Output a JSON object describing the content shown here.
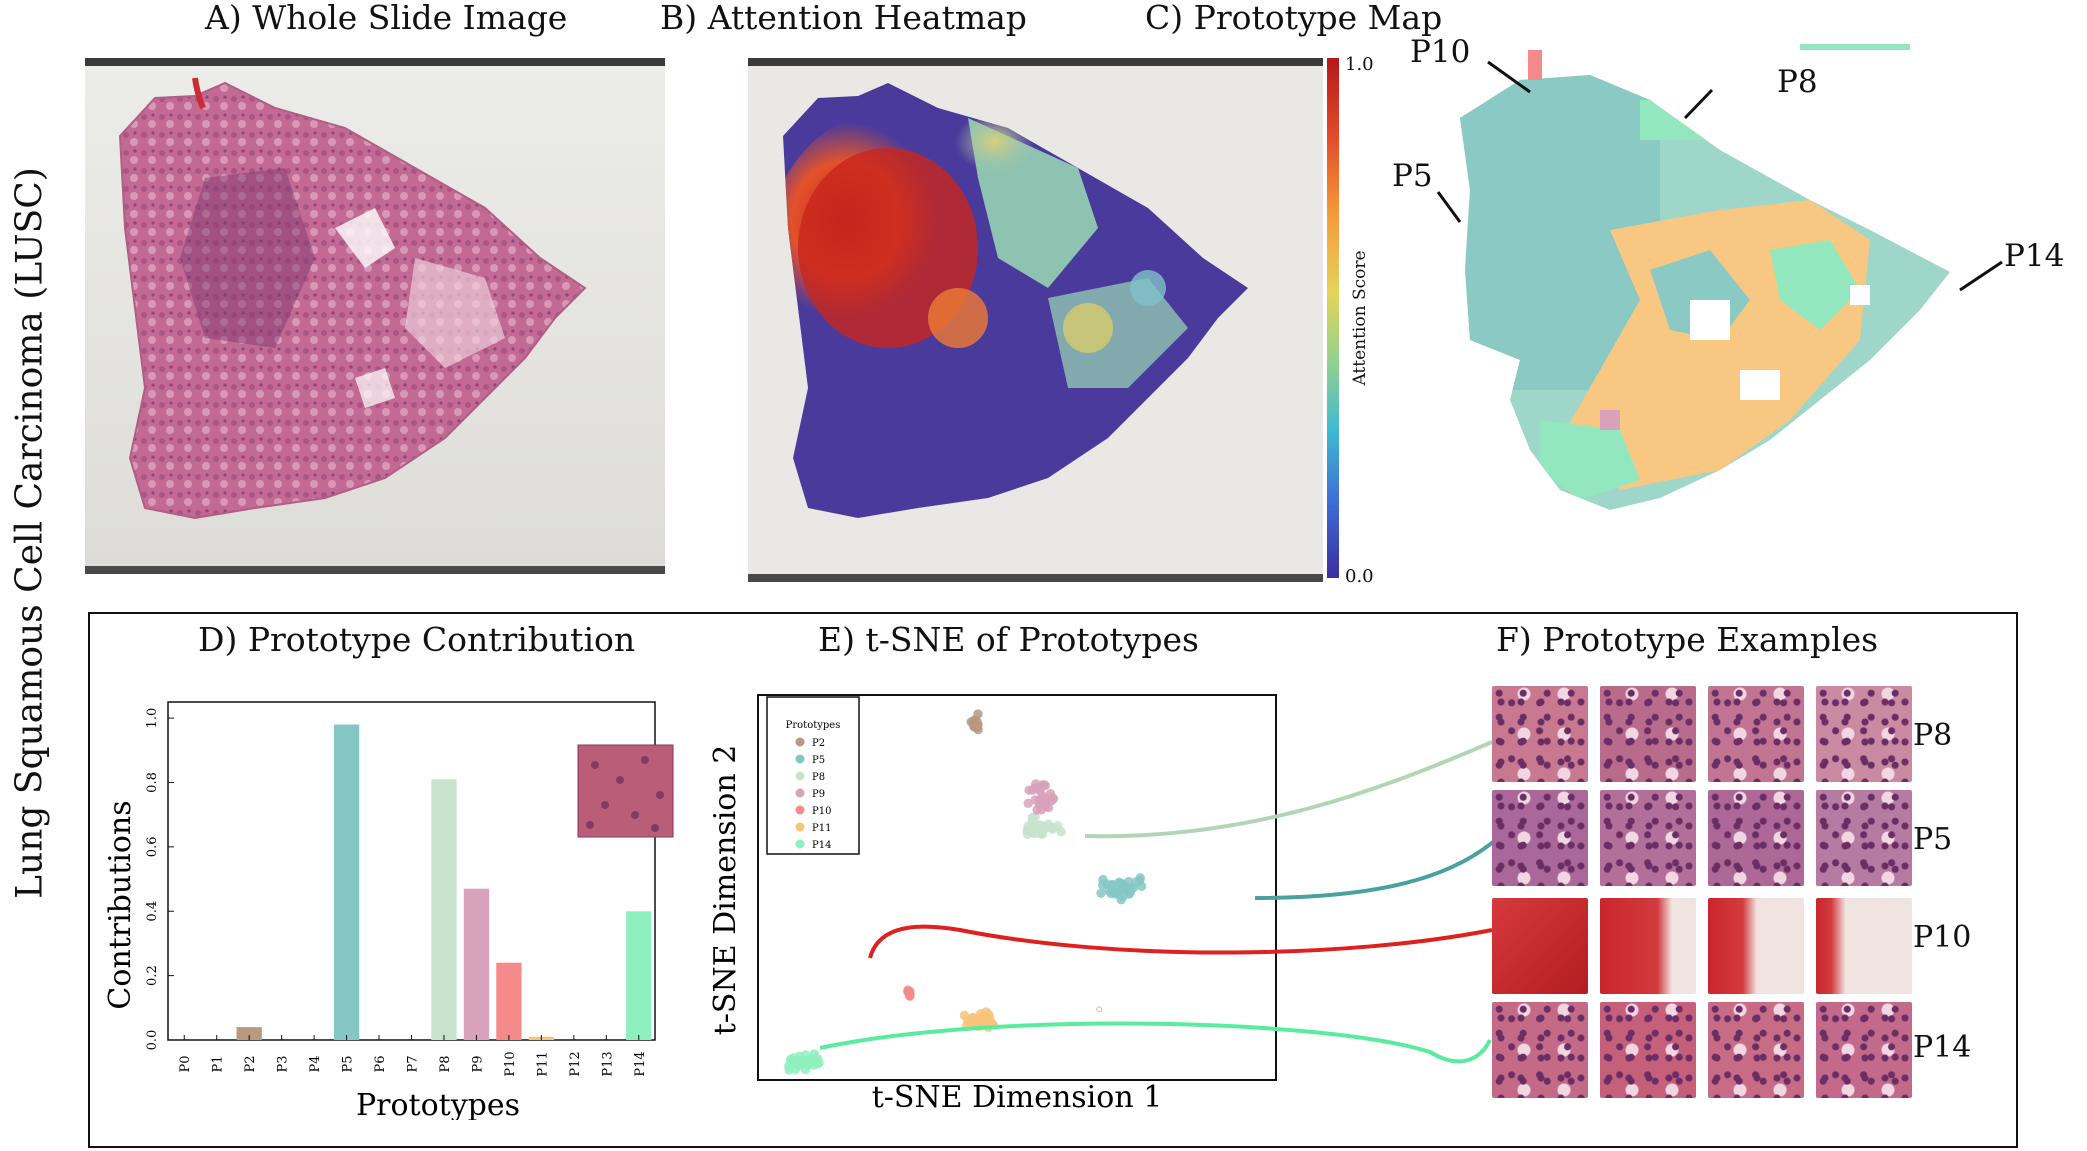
{
  "side_label": "Lung Squamous Cell Carcinoma (LUSC)",
  "panels": {
    "a": {
      "title": "A) Whole Slide Image"
    },
    "b": {
      "title": "B) Attention Heatmap",
      "colorbar_label": "Attention Score",
      "colorbar_max": "1.0",
      "colorbar_min": "0.0"
    },
    "c": {
      "title": "C) Prototype Map",
      "callouts": [
        "P10",
        "P8",
        "P5",
        "P14"
      ]
    },
    "d": {
      "title": "D) Prototype Contribution"
    },
    "e": {
      "title": "E) t-SNE of Prototypes",
      "legend_title": "Prototypes"
    },
    "f": {
      "title": "F) Prototype Examples",
      "row_labels": [
        "P8",
        "P5",
        "P10",
        "P14"
      ]
    }
  },
  "colors": {
    "P2": "#b89a80",
    "P5": "#84c7c4",
    "P8": "#c7e3cc",
    "P9": "#d9a2bb",
    "P10": "#f58a8a",
    "P11": "#f7c47a",
    "P14": "#8ef0be"
  },
  "chart_data": [
    {
      "type": "bar",
      "title": "D) Prototype Contribution",
      "xlabel": "Prototypes",
      "ylabel": "Contributions",
      "categories": [
        "P0",
        "P1",
        "P2",
        "P3",
        "P4",
        "P5",
        "P6",
        "P7",
        "P8",
        "P9",
        "P10",
        "P11",
        "P12",
        "P13",
        "P14"
      ],
      "values": [
        0,
        0,
        0.04,
        0,
        0,
        0.98,
        0,
        0,
        0.81,
        0.47,
        0.24,
        0.01,
        0,
        0,
        0.4
      ],
      "yticks": [
        "0.0",
        "0.2",
        "0.4",
        "0.6",
        "0.8",
        "1.0"
      ],
      "ylim": [
        0,
        1.05
      ]
    },
    {
      "type": "scatter",
      "title": "E) t-SNE of Prototypes",
      "xlabel": "t-SNE Dimension 1",
      "ylabel": "t-SNE Dimension 2",
      "legend_title": "Prototypes",
      "legend": "top-left",
      "series": [
        {
          "name": "P2",
          "center": [
            0.42,
            0.93
          ],
          "n": 18,
          "spread": [
            0.015,
            0.03
          ]
        },
        {
          "name": "P5",
          "center": [
            0.71,
            0.5
          ],
          "n": 30,
          "spread": [
            0.06,
            0.04
          ]
        },
        {
          "name": "P8",
          "center": [
            0.55,
            0.66
          ],
          "n": 30,
          "spread": [
            0.045,
            0.035
          ]
        },
        {
          "name": "P9",
          "center": [
            0.55,
            0.74
          ],
          "n": 30,
          "spread": [
            0.045,
            0.05
          ]
        },
        {
          "name": "P10",
          "center": [
            0.29,
            0.22
          ],
          "n": 8,
          "spread": [
            0.008,
            0.015
          ]
        },
        {
          "name": "P11",
          "center": [
            0.43,
            0.15
          ],
          "n": 35,
          "spread": [
            0.04,
            0.03
          ]
        },
        {
          "name": "P14",
          "center": [
            0.09,
            0.04
          ],
          "n": 35,
          "spread": [
            0.045,
            0.03
          ]
        },
        {
          "name": "P9",
          "center": [
            0.66,
            0.18
          ],
          "n": 1,
          "spread": [
            0,
            0
          ]
        }
      ]
    }
  ]
}
